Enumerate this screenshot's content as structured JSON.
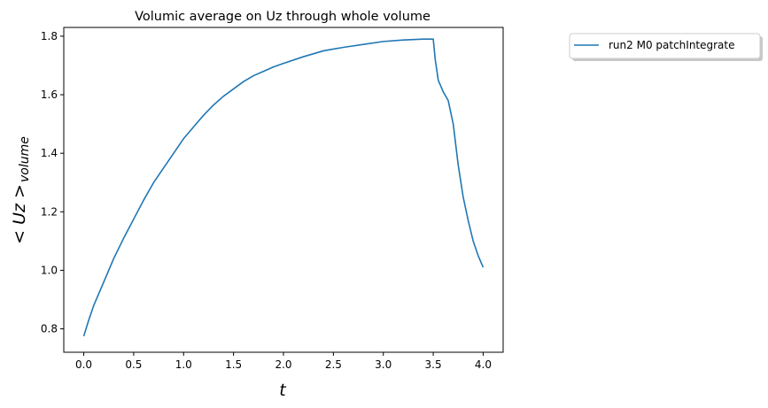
{
  "chart_data": {
    "type": "line",
    "title": "Volumic average on Uz through whole volume",
    "xlabel": "t",
    "ylabel_main": "< Uz >",
    "ylabel_sub": "volume",
    "xlim": [
      -0.2,
      4.2
    ],
    "ylim": [
      0.72,
      1.83
    ],
    "xticks": [
      0.0,
      0.5,
      1.0,
      1.5,
      2.0,
      2.5,
      3.0,
      3.5,
      4.0
    ],
    "xtick_labels": [
      "0.0",
      "0.5",
      "1.0",
      "1.5",
      "2.0",
      "2.5",
      "3.0",
      "3.5",
      "4.0"
    ],
    "yticks": [
      0.8,
      1.0,
      1.2,
      1.4,
      1.6,
      1.8
    ],
    "ytick_labels": [
      "0.8",
      "1.0",
      "1.2",
      "1.4",
      "1.6",
      "1.8"
    ],
    "grid": false,
    "legend_position": "outside upper right",
    "series": [
      {
        "name": "run2 M0 patchIntegrate",
        "color": "#1f77b4",
        "x": [
          0.0,
          0.05,
          0.1,
          0.2,
          0.3,
          0.4,
          0.5,
          0.6,
          0.7,
          0.8,
          0.9,
          1.0,
          1.1,
          1.2,
          1.3,
          1.4,
          1.5,
          1.6,
          1.7,
          1.8,
          1.9,
          2.0,
          2.2,
          2.4,
          2.6,
          2.8,
          3.0,
          3.2,
          3.4,
          3.5,
          3.52,
          3.55,
          3.6,
          3.65,
          3.7,
          3.75,
          3.8,
          3.85,
          3.9,
          3.95,
          4.0
        ],
        "y": [
          0.775,
          0.83,
          0.88,
          0.96,
          1.04,
          1.11,
          1.175,
          1.24,
          1.3,
          1.35,
          1.4,
          1.45,
          1.49,
          1.53,
          1.565,
          1.595,
          1.62,
          1.645,
          1.665,
          1.68,
          1.695,
          1.707,
          1.73,
          1.75,
          1.762,
          1.772,
          1.782,
          1.787,
          1.79,
          1.79,
          1.72,
          1.65,
          1.61,
          1.58,
          1.5,
          1.36,
          1.25,
          1.17,
          1.1,
          1.05,
          1.01
        ]
      }
    ]
  }
}
